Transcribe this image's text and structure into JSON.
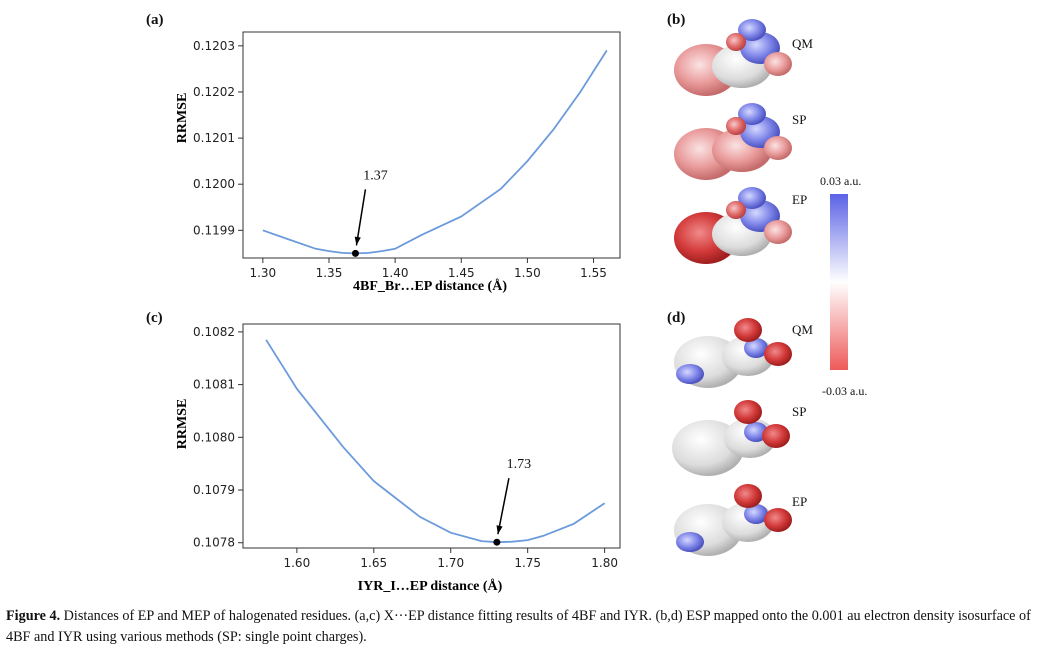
{
  "panels": {
    "a": {
      "label": "(a)",
      "chart_data": {
        "type": "line",
        "ylabel": "RRMSE",
        "xlabel": "4BF_Br…EP distance (Å)",
        "xlim": [
          1.285,
          1.57
        ],
        "ylim": [
          0.11984,
          0.12033
        ],
        "xticks": [
          "1.30",
          "1.35",
          "1.40",
          "1.45",
          "1.50",
          "1.55"
        ],
        "xtick_values": [
          1.3,
          1.35,
          1.4,
          1.45,
          1.5,
          1.55
        ],
        "yticks": [
          "0.1199",
          "0.1200",
          "0.1201",
          "0.1202",
          "0.1203"
        ],
        "ytick_values": [
          0.1199,
          0.12,
          0.1201,
          0.1202,
          0.1203
        ],
        "series": [
          {
            "color": "#6b9bdc",
            "x": [
              1.3,
              1.32,
              1.34,
              1.35,
              1.36,
              1.37,
              1.38,
              1.39,
              1.4,
              1.42,
              1.45,
              1.48,
              1.5,
              1.52,
              1.54,
              1.56
            ],
            "y": [
              0.1199,
              0.11988,
              0.11986,
              0.119855,
              0.119851,
              0.11985,
              0.119851,
              0.119855,
              0.11986,
              0.11989,
              0.11993,
              0.11999,
              0.12005,
              0.12012,
              0.1202,
              0.12029
            ]
          }
        ],
        "marker": {
          "x": 1.37,
          "y": 0.11985
        },
        "annotation": "1.37"
      }
    },
    "c": {
      "label": "(c)",
      "chart_data": {
        "type": "line",
        "ylabel": "RRMSE",
        "xlabel": "IYR_I…EP distance (Å)",
        "xlim": [
          1.565,
          1.81
        ],
        "ylim": [
          0.10779,
          0.108215
        ],
        "xticks": [
          "1.60",
          "1.65",
          "1.70",
          "1.75",
          "1.80"
        ],
        "xtick_values": [
          1.6,
          1.65,
          1.7,
          1.75,
          1.8
        ],
        "yticks": [
          "0.1078",
          "0.1079",
          "0.1080",
          "0.1081",
          "0.1082"
        ],
        "ytick_values": [
          0.1078,
          0.1079,
          0.108,
          0.1081,
          0.1082
        ],
        "series": [
          {
            "color": "#6b9bdc",
            "x": [
              1.58,
              1.6,
              1.63,
              1.65,
              1.68,
              1.7,
              1.72,
              1.73,
              1.74,
              1.75,
              1.76,
              1.78,
              1.8
            ],
            "y": [
              0.108185,
              0.108092,
              0.107982,
              0.107917,
              0.107849,
              0.107819,
              0.107803,
              0.107801,
              0.107802,
              0.107805,
              0.107813,
              0.107836,
              0.107875
            ]
          }
        ],
        "marker": {
          "x": 1.73,
          "y": 0.107801
        },
        "annotation": "1.73"
      }
    },
    "b": {
      "label": "(b)",
      "methods": [
        "QM",
        "SP",
        "EP"
      ]
    },
    "d": {
      "label": "(d)",
      "methods": [
        "QM",
        "SP",
        "EP"
      ]
    }
  },
  "colorbar": {
    "top_label": "0.03 a.u.",
    "bottom_label": "-0.03 a.u.",
    "top_color": "#5a62e6",
    "bottom_color": "#ee5a5a"
  },
  "caption": {
    "bold": "Figure 4.",
    "text": " Distances of EP and MEP of halogenated residues. (a,c) X···EP distance fitting results of 4BF and IYR. (b,d) ESP mapped onto the 0.001 au electron density isosurface of 4BF and IYR using various methods (SP: single point charges)."
  }
}
